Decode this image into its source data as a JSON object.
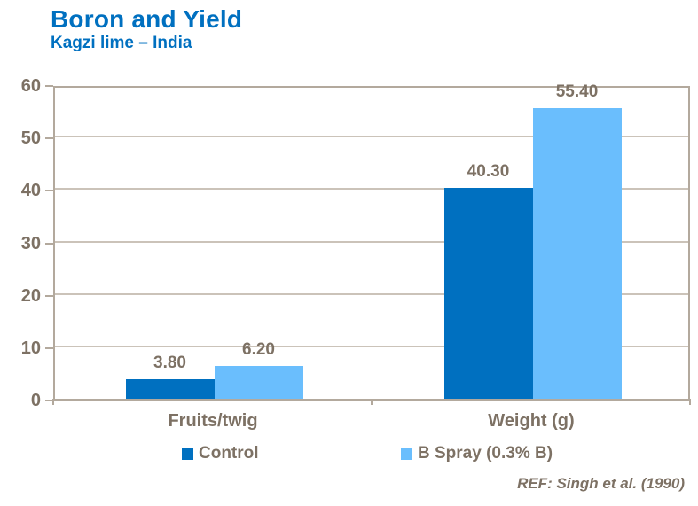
{
  "header": {
    "title": "Boron and Yield",
    "subtitle": "Kagzi lime – India"
  },
  "footer": {
    "reference": "REF: Singh et al. (1990)"
  },
  "colors": {
    "title_blue": "#0070C0",
    "label_brown": "#7D7164",
    "axis": "#B3A99D",
    "grid": "#CBC3B9"
  },
  "chart_data": {
    "type": "bar",
    "categories": [
      "Fruits/twig",
      "Weight (g)"
    ],
    "series": [
      {
        "name": "Control",
        "values": [
          3.8,
          40.3
        ],
        "color": "#0070C0"
      },
      {
        "name": "B Spray (0.3% B)",
        "values": [
          6.2,
          55.4
        ],
        "color": "#6ABEFD"
      }
    ],
    "value_labels": [
      [
        "3.80",
        "40.30"
      ],
      [
        "6.20",
        "55.40"
      ]
    ],
    "ylim": [
      0,
      60
    ],
    "yticks": [
      0,
      10,
      20,
      30,
      40,
      50,
      60
    ],
    "grid": true,
    "legend_position": "bottom"
  }
}
